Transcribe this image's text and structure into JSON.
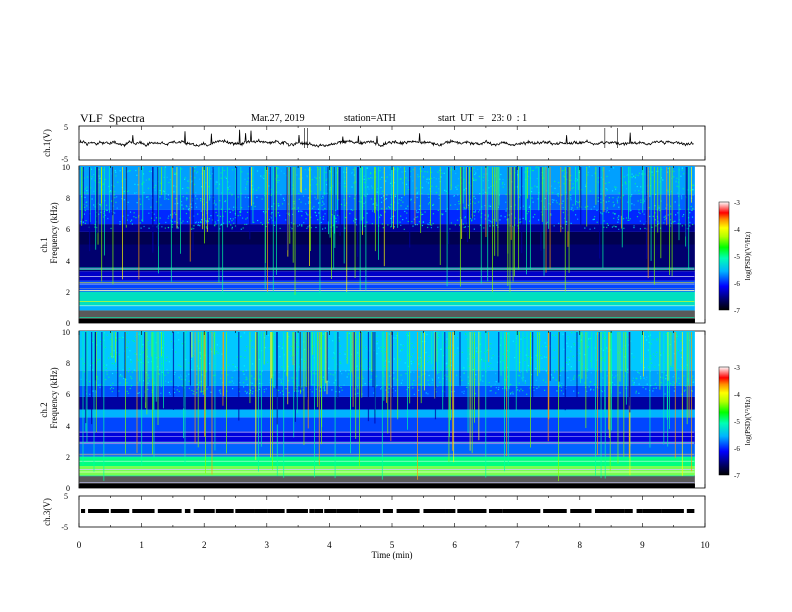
{
  "header": {
    "title": "VLF  Spectra",
    "date": "Mar.27, 2019",
    "station": "station=ATH",
    "start": "start  UT  =   23: 0  : 1"
  },
  "chart_data": [
    {
      "type": "line",
      "panel": "ch1",
      "ylabel": "ch.1(V)",
      "yticks": [
        "5",
        "-5"
      ],
      "ylim": [
        -5,
        5
      ],
      "xlim": [
        0,
        10
      ],
      "series": [
        {
          "values_summary": "noisy trace near 0 V with occasional spikes"
        }
      ]
    },
    {
      "type": "heatmap",
      "panel": "ch1-spectrogram",
      "ylabel_lines": [
        "ch.1",
        "Frequency  (kHz)"
      ],
      "yticks": [
        "0",
        "2",
        "4",
        "6",
        "8",
        "10"
      ],
      "ylim": [
        0,
        10
      ],
      "xlim": [
        0,
        9.83
      ],
      "colorbar": {
        "label": "log(PSD)(V²/Hz)",
        "ticks": [
          "-3",
          "-4",
          "-5",
          "-6",
          "-7"
        ],
        "range": [
          -7,
          -3
        ]
      }
    },
    {
      "type": "heatmap",
      "panel": "ch2-spectrogram",
      "ylabel_lines": [
        "ch.2",
        "Frequency  (kHz)"
      ],
      "yticks": [
        "0",
        "2",
        "4",
        "6",
        "8",
        "10"
      ],
      "ylim": [
        0,
        10
      ],
      "xlim": [
        0,
        9.83
      ],
      "colorbar": {
        "label": "log(PSD)(V²/Hz)",
        "ticks": [
          "-3",
          "-4",
          "-5",
          "-6",
          "-7"
        ],
        "range": [
          -7,
          -3
        ]
      }
    },
    {
      "type": "line",
      "panel": "ch3",
      "ylabel": "ch.3(V)",
      "yticks": [
        "5",
        "-5"
      ],
      "ylim": [
        -5,
        5
      ],
      "xlim": [
        0,
        10
      ],
      "series": [
        {
          "values_summary": "pulsed digital trace near -1.5 V"
        }
      ]
    }
  ],
  "xaxis": {
    "label": "Time  (min)",
    "ticks": [
      "0",
      "1",
      "2",
      "3",
      "4",
      "5",
      "6",
      "7",
      "8",
      "9",
      "10"
    ]
  }
}
